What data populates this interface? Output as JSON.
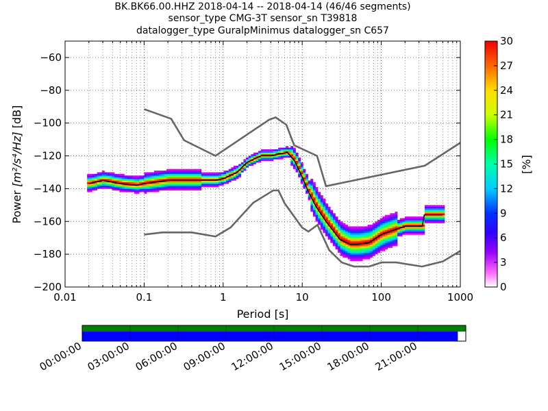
{
  "title": {
    "line1": "BK.BK66.00.HHZ   2018-04-14 -- 2018-04-14  (46/46 segments)",
    "line2": "sensor_type CMG-3T sensor_sn T39818",
    "line3": "datalogger_type GuralpMinimus datalogger_sn C657"
  },
  "chart_data": {
    "type": "heatmap",
    "xlabel": "Period [s]",
    "ylabel_prefix": "Power ",
    "ylabel_units": "[m²/s⁴/Hz]",
    "ylabel_suffix": " [dB]",
    "xscale": "log",
    "xlim": [
      0.01,
      1000
    ],
    "ylim": [
      -200,
      -50
    ],
    "xticks": [
      {
        "value": 0.01,
        "label": "0.01"
      },
      {
        "value": 0.1,
        "label": "0.1"
      },
      {
        "value": 1,
        "label": "1"
      },
      {
        "value": 10,
        "label": "10"
      },
      {
        "value": 100,
        "label": "100"
      },
      {
        "value": 1000,
        "label": "1000"
      }
    ],
    "yticks": [
      {
        "value": -60,
        "label": "−60"
      },
      {
        "value": -80,
        "label": "−80"
      },
      {
        "value": -100,
        "label": "−100"
      },
      {
        "value": -120,
        "label": "−120"
      },
      {
        "value": -140,
        "label": "−140"
      },
      {
        "value": -160,
        "label": "−160"
      },
      {
        "value": -180,
        "label": "−180"
      },
      {
        "value": -200,
        "label": "−200"
      }
    ],
    "grid": true,
    "colorbar": {
      "label": "[%]",
      "range": [
        0,
        30
      ],
      "ticks": [
        "0",
        "3",
        "6",
        "9",
        "12",
        "15",
        "18",
        "21",
        "24",
        "27",
        "30"
      ]
    },
    "nhnm": {
      "periods": [
        0.1,
        0.22,
        0.32,
        0.8,
        3.8,
        4.6,
        6.3,
        7.9,
        15.4,
        20,
        354.8,
        1000
      ],
      "power": [
        -91.5,
        -97.4,
        -110.5,
        -120,
        -98,
        -96.5,
        -101,
        -113.5,
        -120,
        -138.5,
        -126,
        -112
      ]
    },
    "nlnm": {
      "periods": [
        0.1,
        0.17,
        0.4,
        0.8,
        1.24,
        2.4,
        4.3,
        5,
        6,
        10,
        12,
        15.6,
        21.9,
        31.6,
        45,
        70,
        101,
        154,
        328,
        600,
        1000
      ],
      "power": [
        -168,
        -166.7,
        -166.7,
        -169.2,
        -163.7,
        -148.6,
        -141.1,
        -141.1,
        -149,
        -163.8,
        -166.2,
        -162.1,
        -177.5,
        -185,
        -187.5,
        -187.5,
        -185,
        -185,
        -187.5,
        -184.4,
        -178
      ]
    },
    "mode_line": {
      "periods": [
        0.02,
        0.03,
        0.05,
        0.08,
        0.1,
        0.2,
        0.5,
        0.8,
        1,
        1.5,
        2,
        3,
        4,
        5,
        6.5,
        8,
        10,
        12,
        15,
        20,
        25,
        30,
        40,
        50,
        70,
        100,
        150,
        200,
        300,
        330,
        350,
        600
      ],
      "power": [
        -137,
        -135,
        -137,
        -138,
        -137,
        -135,
        -135,
        -135,
        -134,
        -130,
        -124,
        -120,
        -120,
        -119,
        -118,
        -123,
        -133,
        -142,
        -151,
        -160,
        -166,
        -171,
        -174,
        -174,
        -173,
        -168,
        -165,
        -163,
        -163,
        -163,
        -156,
        -156
      ]
    },
    "time_axis": {
      "tick_labels": [
        "00:00:00",
        "03:00:00",
        "06:00:00",
        "09:00:00",
        "12:00:00",
        "15:00:00",
        "18:00:00",
        "21:00:00"
      ],
      "data_coverage": [
        0,
        24
      ],
      "processed_coverage": [
        0,
        23.5
      ]
    }
  },
  "colors": {
    "nhnm_nlnm": "#666666",
    "mode_line": "#000000",
    "coverage_data": "#008000",
    "coverage_processed": "#0000ff",
    "grid": "#000000"
  }
}
